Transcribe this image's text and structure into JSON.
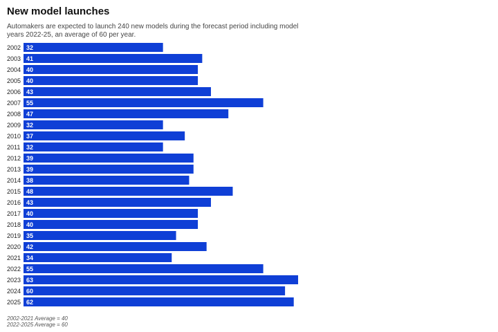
{
  "title": "New model launches",
  "subtitle": "Automakers are expected to launch 240 new models during the forecast period including model years 2022-25, an average of 60 per year.",
  "notes": [
    "2002-2021 Average = 40",
    "2022-2025 Average = 60"
  ],
  "colors": {
    "bar": "#0f3fd6",
    "bar_label": "#ffffff",
    "category_label": "#222222"
  },
  "chart_data": {
    "type": "bar",
    "orientation": "horizontal",
    "categories": [
      "2002",
      "2003",
      "2004",
      "2005",
      "2006",
      "2007",
      "2008",
      "2009",
      "2010",
      "2011",
      "2012",
      "2013",
      "2014",
      "2015",
      "2016",
      "2017",
      "2018",
      "2019",
      "2020",
      "2021",
      "2022",
      "2023",
      "2024",
      "2025"
    ],
    "values": [
      32,
      41,
      40,
      40,
      43,
      55,
      47,
      32,
      37,
      32,
      39,
      39,
      38,
      48,
      43,
      40,
      40,
      35,
      42,
      34,
      55,
      63,
      60,
      62
    ],
    "data_labels": true,
    "grid": false,
    "xlim": [
      0,
      63
    ]
  }
}
